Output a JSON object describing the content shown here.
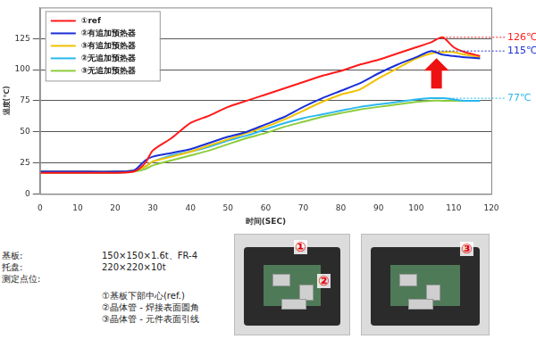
{
  "chart_data": {
    "type": "line",
    "x_label": "时间(SEC)",
    "y_label": "温度(℃)",
    "x": [
      0,
      10,
      20,
      25,
      28,
      30,
      35,
      40,
      45,
      50,
      55,
      60,
      65,
      70,
      75,
      80,
      85,
      90,
      95,
      100,
      104,
      107,
      110,
      113,
      117
    ],
    "xlim": [
      0,
      120
    ],
    "xticks": [
      0,
      10,
      20,
      30,
      40,
      50,
      60,
      70,
      80,
      90,
      100,
      110,
      120
    ],
    "ylim": [
      0,
      150
    ],
    "yticks": [
      0,
      25,
      50,
      75,
      100,
      125
    ],
    "grid": true,
    "legend": "upper left",
    "series": [
      {
        "name": "①ref",
        "color": "#ff1a1a",
        "values": [
          17,
          17,
          17,
          18,
          25,
          35,
          45,
          57,
          63,
          70,
          75,
          80,
          85,
          90,
          95,
          99,
          104,
          108,
          113,
          118,
          122,
          126,
          118,
          114,
          111
        ]
      },
      {
        "name": "②有追加预热器",
        "color": "#1a2fd6",
        "values": [
          18,
          18,
          18,
          19,
          27,
          30,
          33,
          36,
          41,
          46,
          50,
          56,
          62,
          70,
          77,
          83,
          89,
          97,
          104,
          110,
          115,
          112,
          111,
          110,
          109
        ]
      },
      {
        "name": "③有追加预热器",
        "color": "#f2c200",
        "values": [
          18,
          18,
          18,
          19,
          22,
          26,
          30,
          34,
          39,
          44,
          49,
          54,
          60,
          67,
          74,
          80,
          84,
          93,
          101,
          109,
          113,
          114,
          114,
          112,
          110
        ]
      },
      {
        "name": "②无追加预热器",
        "color": "#2ab7ee",
        "values": [
          18,
          18,
          18,
          19,
          22,
          26,
          31,
          34,
          38,
          43,
          47,
          52,
          57,
          61,
          64,
          67,
          70,
          72,
          74,
          76,
          77,
          77,
          76,
          75,
          75
        ]
      },
      {
        "name": "③无追加预热器",
        "color": "#8ccc3c",
        "values": [
          17,
          17,
          17,
          18,
          20,
          23,
          27,
          31,
          35,
          40,
          45,
          49,
          54,
          58,
          62,
          65,
          68,
          70,
          72,
          74,
          75,
          75,
          75,
          75,
          75
        ]
      }
    ],
    "annotations": [
      {
        "text": "126℃",
        "x": 107,
        "y": 126,
        "color": "#ff1a1a"
      },
      {
        "text": "115℃",
        "x": 104,
        "y": 115,
        "color": "#1a2fd6"
      },
      {
        "text": "77℃",
        "x": 104,
        "y": 77,
        "color": "#2ab7ee"
      }
    ]
  },
  "specs": [
    {
      "label": "基板:",
      "value": "150×150×1.6t、FR-4"
    },
    {
      "label": "托盘:",
      "value": "220×220×10t"
    },
    {
      "label": "测定点位:",
      "items": [
        "①基板下部中心(ref.)",
        "②晶体管 - 焊接表面圆角",
        "③晶体管 - 元件表面引线"
      ]
    }
  ],
  "photos": [
    {
      "labels": [
        "①",
        "②"
      ]
    },
    {
      "labels": [
        "③"
      ]
    }
  ]
}
